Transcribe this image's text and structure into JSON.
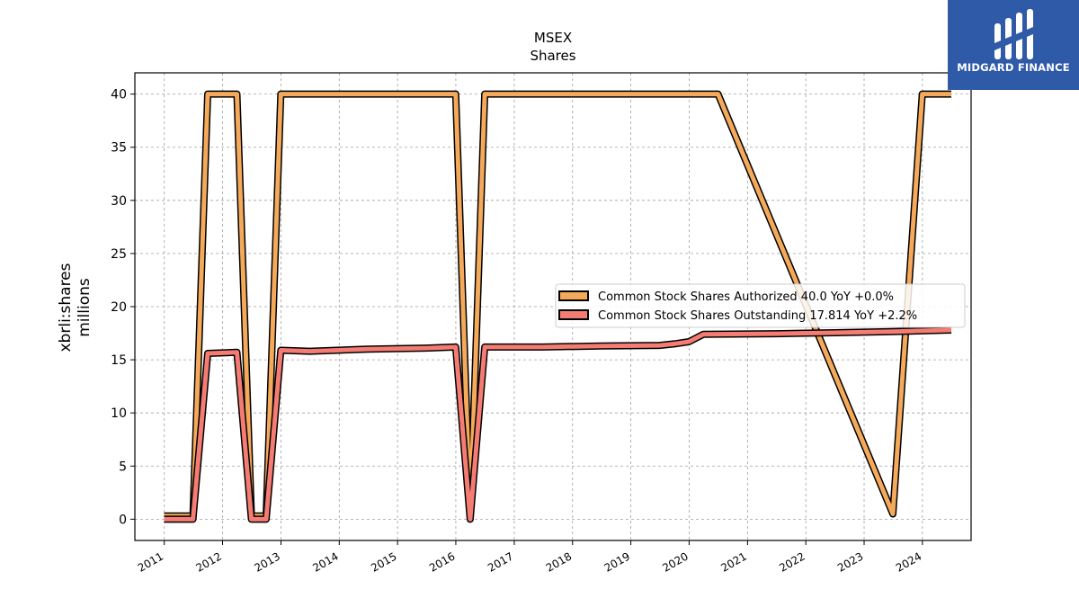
{
  "chart_data": {
    "type": "line",
    "title": "MSEX",
    "subtitle": "Shares",
    "ylabel": "xbrli:shares",
    "ylabel_unit": "millions",
    "xlabel": "",
    "x_ticks": [
      "2011",
      "2012",
      "2013",
      "2014",
      "2015",
      "2016",
      "2017",
      "2018",
      "2019",
      "2020",
      "2021",
      "2022",
      "2023",
      "2024"
    ],
    "y_ticks": [
      "0",
      "5",
      "10",
      "15",
      "20",
      "25",
      "30",
      "35",
      "40"
    ],
    "xlim": [
      "2010-07-01",
      "2024-11-01"
    ],
    "ylim": [
      -2,
      42
    ],
    "grid": true,
    "legend_position": "center-right",
    "series": [
      {
        "name": "Common Stock Shares Authorized  40.0 YoY +0.0%",
        "color": "#f4a95b",
        "points": [
          [
            "2010-12-31",
            0.3
          ],
          [
            "2011-06-30",
            0.3
          ],
          [
            "2011-09-30",
            40.0
          ],
          [
            "2012-03-31",
            40.0
          ],
          [
            "2012-06-30",
            0.3
          ],
          [
            "2012-09-30",
            0.3
          ],
          [
            "2012-12-31",
            40.0
          ],
          [
            "2015-12-31",
            40.0
          ],
          [
            "2016-03-31",
            0.3
          ],
          [
            "2016-06-30",
            40.0
          ],
          [
            "2020-06-30",
            40.0
          ],
          [
            "2023-06-30",
            0.5
          ],
          [
            "2023-12-31",
            40.0
          ],
          [
            "2024-06-30",
            40.0
          ]
        ]
      },
      {
        "name": "Common Stock Shares Outstanding  17.814 YoY +2.2%",
        "color": "#f47c72",
        "points": [
          [
            "2010-12-31",
            0.0
          ],
          [
            "2011-06-30",
            0.0
          ],
          [
            "2011-09-30",
            15.6
          ],
          [
            "2012-03-31",
            15.7
          ],
          [
            "2012-06-30",
            0.0
          ],
          [
            "2012-09-30",
            0.0
          ],
          [
            "2012-12-31",
            15.9
          ],
          [
            "2013-06-30",
            15.8
          ],
          [
            "2014-06-30",
            16.0
          ],
          [
            "2015-06-30",
            16.1
          ],
          [
            "2015-12-31",
            16.2
          ],
          [
            "2016-03-31",
            0.0
          ],
          [
            "2016-06-30",
            16.2
          ],
          [
            "2017-06-30",
            16.2
          ],
          [
            "2018-06-30",
            16.3
          ],
          [
            "2019-06-30",
            16.35
          ],
          [
            "2019-09-30",
            16.5
          ],
          [
            "2019-12-31",
            16.7
          ],
          [
            "2020-03-31",
            17.4
          ],
          [
            "2021-06-30",
            17.45
          ],
          [
            "2022-06-30",
            17.55
          ],
          [
            "2023-06-30",
            17.65
          ],
          [
            "2024-06-30",
            17.8
          ]
        ]
      }
    ]
  },
  "logo": {
    "name": "MIDGARD FINANCE"
  }
}
